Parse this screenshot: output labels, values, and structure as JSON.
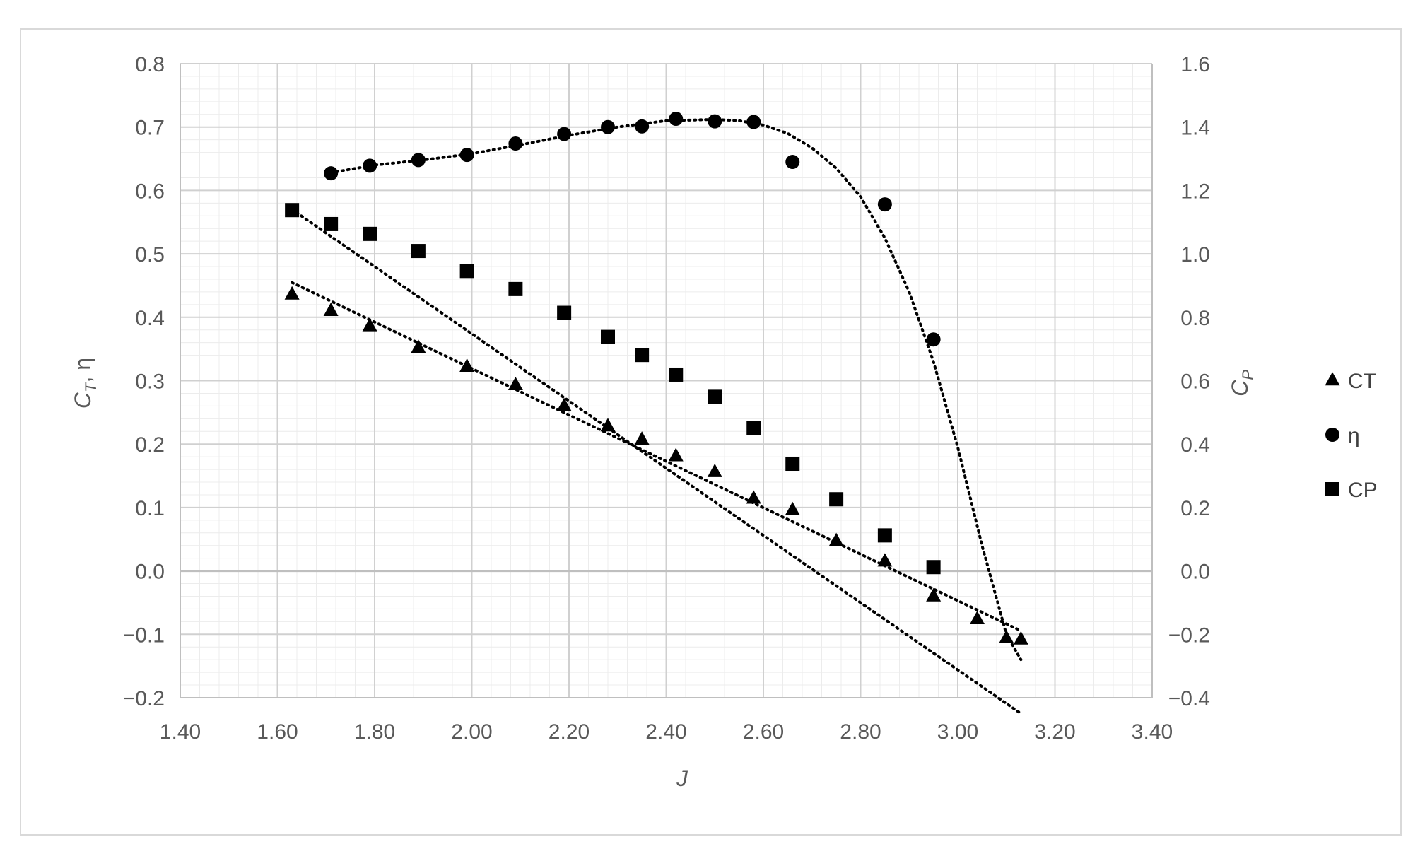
{
  "chart_data": {
    "type": "scatter",
    "xlabel": "J",
    "ylabel_left": {
      "main": "C",
      "sub": "T",
      "rest": ", η"
    },
    "ylabel_right": {
      "main": "C",
      "sub": "P"
    },
    "xlim": [
      1.4,
      3.4
    ],
    "ylim_left": [
      -0.2,
      0.8
    ],
    "ylim_right": [
      -0.4,
      1.6
    ],
    "x_ticks": [
      "1.40",
      "1.60",
      "1.80",
      "2.00",
      "2.20",
      "2.40",
      "2.60",
      "2.80",
      "3.00",
      "3.20",
      "3.40"
    ],
    "y_left_ticks": [
      "0.8",
      "0.7",
      "0.6",
      "0.5",
      "0.4",
      "0.3",
      "0.2",
      "0.1",
      "0.0",
      "−0.1",
      "−0.2"
    ],
    "y_right_ticks": [
      "1.6",
      "1.4",
      "1.2",
      "1.0",
      "0.8",
      "0.6",
      "0.4",
      "0.2",
      "0.0",
      "−0.2",
      "−0.4"
    ],
    "grid": true,
    "legend_position": "right",
    "series": [
      {
        "name": "CT",
        "marker": "triangle",
        "axis": "left",
        "x": [
          1.63,
          1.71,
          1.79,
          1.89,
          1.99,
          2.09,
          2.19,
          2.28,
          2.35,
          2.42,
          2.5,
          2.58,
          2.66,
          2.75,
          2.85,
          2.95,
          3.04,
          3.1,
          3.13
        ],
        "y": [
          0.436,
          0.41,
          0.386,
          0.352,
          0.322,
          0.293,
          0.26,
          0.228,
          0.207,
          0.181,
          0.156,
          0.114,
          0.096,
          0.047,
          0.015,
          -0.04,
          -0.076,
          -0.106,
          -0.108
        ]
      },
      {
        "name": "η",
        "marker": "circle",
        "axis": "left",
        "x": [
          1.71,
          1.79,
          1.89,
          1.99,
          2.09,
          2.19,
          2.28,
          2.35,
          2.42,
          2.5,
          2.58,
          2.66,
          2.85,
          2.95
        ],
        "y": [
          0.627,
          0.639,
          0.648,
          0.656,
          0.674,
          0.689,
          0.7,
          0.701,
          0.713,
          0.709,
          0.708,
          0.645,
          0.578,
          0.365
        ],
        "trend_x": [
          1.71,
          1.8,
          1.9,
          2.0,
          2.1,
          2.2,
          2.3,
          2.4,
          2.5,
          2.55,
          2.6,
          2.65,
          2.7,
          2.75,
          2.8,
          2.85,
          2.9,
          2.95,
          3.0,
          3.05,
          3.1,
          3.13
        ],
        "trend_y": [
          0.628,
          0.64,
          0.648,
          0.658,
          0.672,
          0.687,
          0.7,
          0.71,
          0.712,
          0.71,
          0.703,
          0.69,
          0.667,
          0.635,
          0.59,
          0.525,
          0.44,
          0.33,
          0.195,
          0.04,
          -0.1,
          -0.14
        ]
      },
      {
        "name": "CP",
        "marker": "square",
        "axis": "right",
        "x": [
          1.63,
          1.71,
          1.79,
          1.89,
          1.99,
          2.09,
          2.19,
          2.28,
          2.35,
          2.42,
          2.5,
          2.58,
          2.66,
          2.75,
          2.85,
          2.95
        ],
        "y": [
          1.138,
          1.094,
          1.063,
          1.009,
          0.946,
          0.889,
          0.814,
          0.738,
          0.681,
          0.619,
          0.549,
          0.451,
          0.338,
          0.226,
          0.112,
          0.012
        ],
        "trend_x": [
          1.63,
          3.13
        ],
        "trend_y": [
          1.14,
          -0.45
        ]
      }
    ]
  }
}
